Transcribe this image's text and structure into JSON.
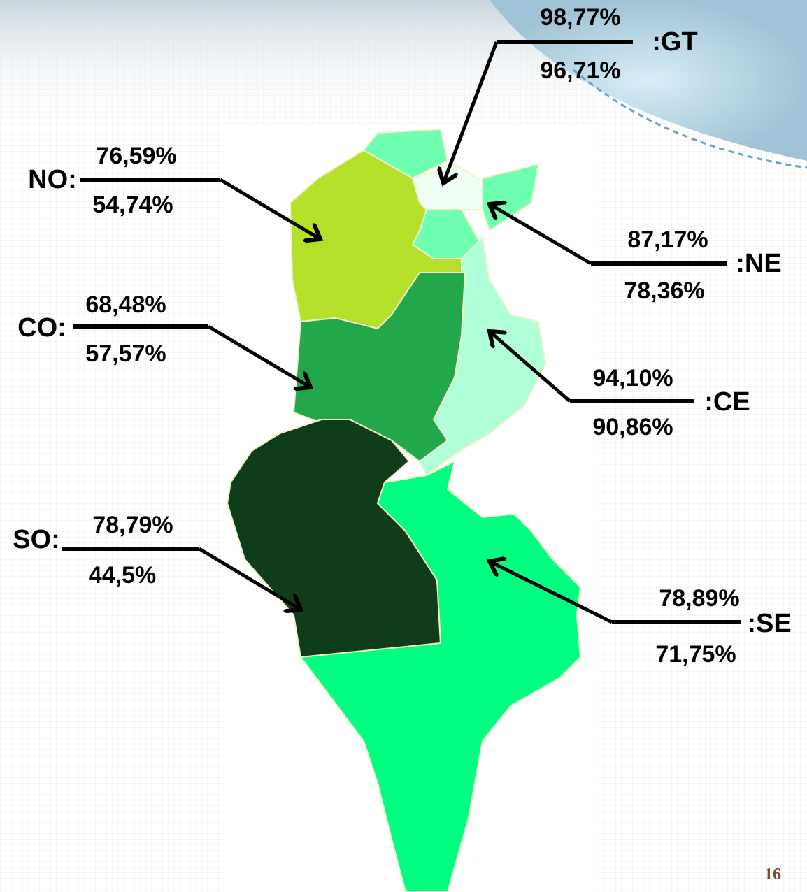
{
  "regions": [
    {
      "label": ":GT",
      "value_top": "98,77%",
      "value_bottom": "96,71%"
    },
    {
      "label": "NO:",
      "value_top": "76,59%",
      "value_bottom": "54,74%"
    },
    {
      "label": ":NE",
      "value_top": "87,17%",
      "value_bottom": "78,36%"
    },
    {
      "label": "CO:",
      "value_top": "68,48%",
      "value_bottom": "57,57%"
    },
    {
      "label": ":CE",
      "value_top": "94,10%",
      "value_bottom": "90,86%"
    },
    {
      "label": "SO:",
      "value_top": "78,79%",
      "value_bottom": "44,5%"
    },
    {
      "label": ":SE",
      "value_top": "78,89%",
      "value_bottom": "71,75%"
    }
  ],
  "page_number": "16"
}
